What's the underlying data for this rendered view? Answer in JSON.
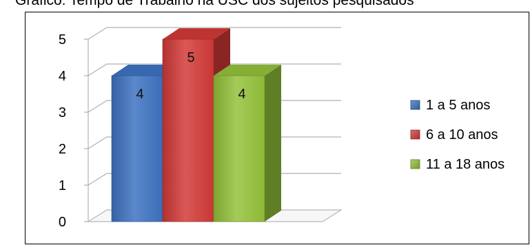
{
  "caption": "Gráfico: Tempo de Trabalho na USC dos sujeitos pesquisados",
  "chart_data": {
    "type": "bar",
    "title": "",
    "xlabel": "",
    "ylabel": "",
    "ylim": [
      0,
      5
    ],
    "yticks": [
      "0",
      "1",
      "2",
      "3",
      "4",
      "5"
    ],
    "grid": true,
    "legend_position": "right",
    "categories": [
      ""
    ],
    "series": [
      {
        "name": "1 a 5 anos",
        "values": [
          4
        ],
        "label": "4",
        "color": "#3e73c2"
      },
      {
        "name": "6 a 10 anos",
        "values": [
          5
        ],
        "label": "5",
        "color": "#d33a38"
      },
      {
        "name": "11 a 18 anos",
        "values": [
          4
        ],
        "label": "4",
        "color": "#94c23a"
      }
    ]
  }
}
